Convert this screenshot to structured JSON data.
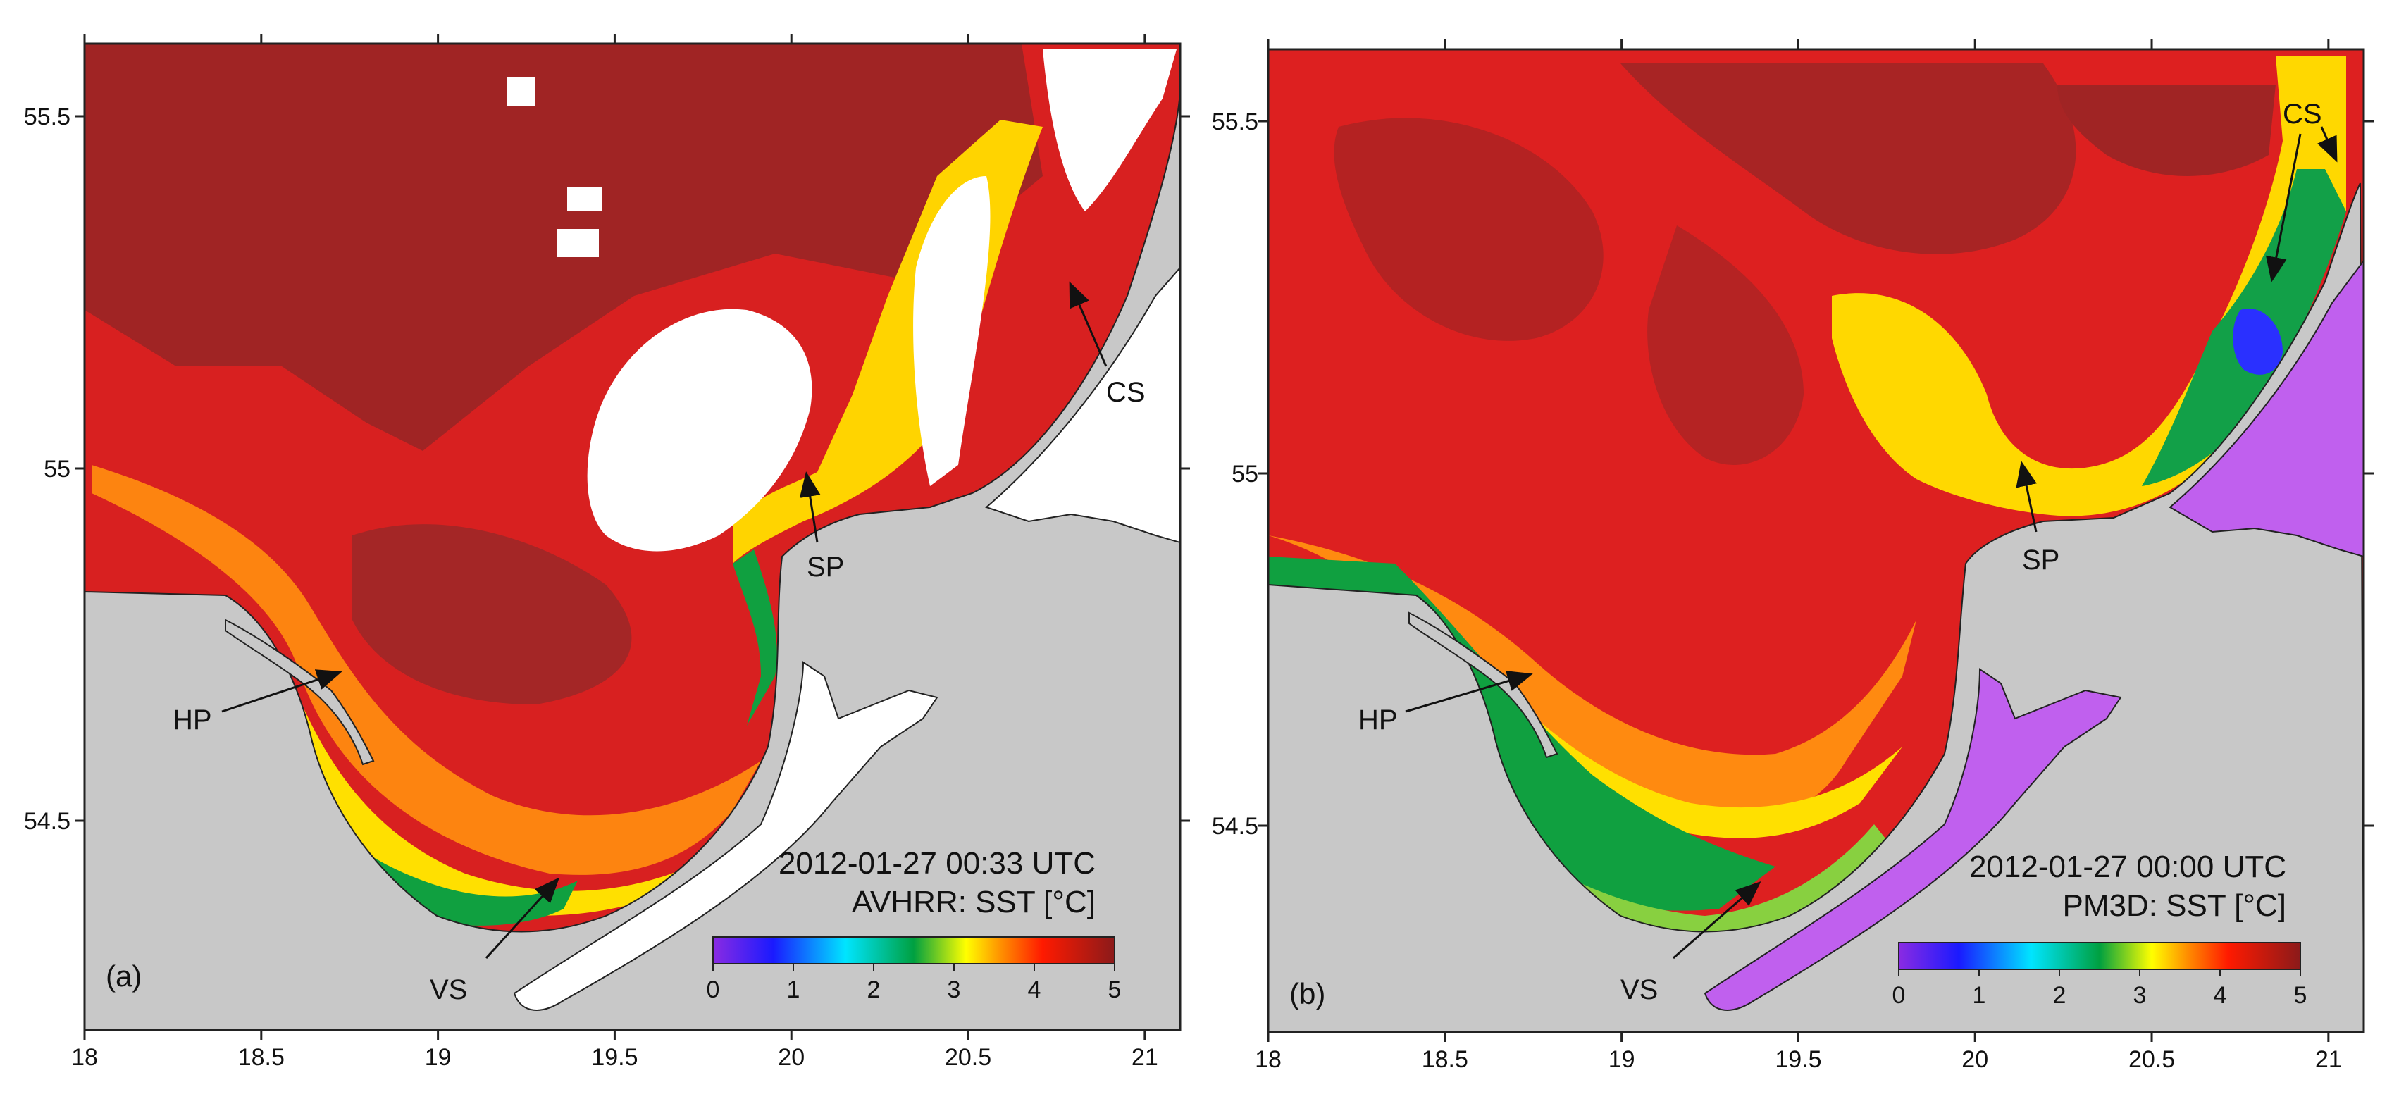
{
  "panels": [
    {
      "label": "(a)",
      "timestamp": "2012-01-27 00:33 UTC",
      "source": "AVHRR: SST [°C]",
      "annotations": {
        "hp": "HP",
        "sp": "SP",
        "cs": "CS",
        "vs": "VS"
      }
    },
    {
      "label": "(b)",
      "timestamp": "2012-01-27 00:00 UTC",
      "source": "PM3D: SST [°C]",
      "annotations": {
        "hp": "HP",
        "sp": "SP",
        "cs": "CS",
        "vs": "VS"
      }
    }
  ],
  "axes": {
    "x_ticks": [
      "18",
      "18.5",
      "19",
      "19.5",
      "20",
      "20.5",
      "21"
    ],
    "y_ticks": [
      "54.5",
      "55",
      "55.5"
    ]
  },
  "colorbar": {
    "ticks": [
      "0",
      "1",
      "2",
      "3",
      "4",
      "5"
    ],
    "colors": [
      "#8a2be2",
      "#1a1aff",
      "#00e5ff",
      "#00a040",
      "#ffff00",
      "#ff8c00",
      "#ff1a00",
      "#8b1a1a"
    ]
  },
  "colors": {
    "land": "#c8c8c8",
    "cloud": "#ffffff",
    "warm": "#dd1f1f",
    "hot": "#9a2424",
    "frozen": "#c060ee"
  }
}
